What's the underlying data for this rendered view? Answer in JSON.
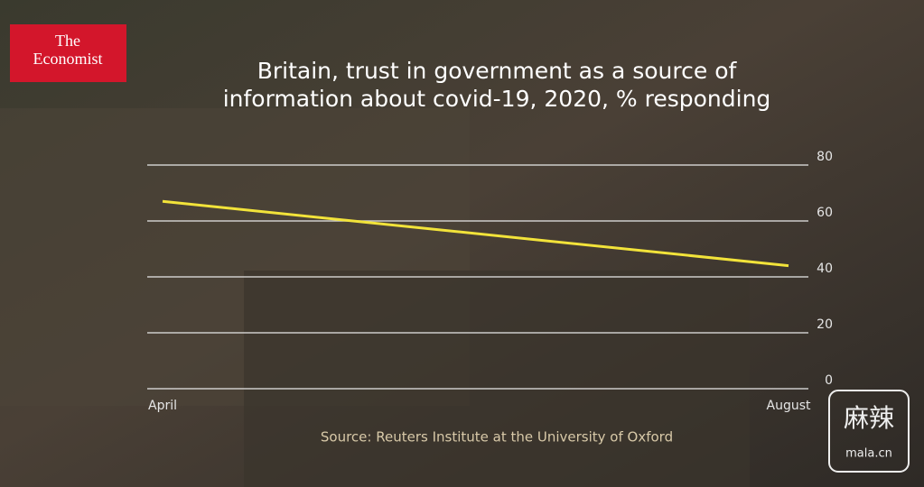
{
  "logo": {
    "lines": [
      "The",
      "Economist"
    ]
  },
  "watermark": {
    "glyph": "麻辣",
    "site": "mala.cn"
  },
  "chart_data": {
    "type": "line",
    "title": [
      "Britain, trust in government as a source of",
      "information about covid-19, 2020, % responding"
    ],
    "categories": [
      "April",
      "August"
    ],
    "values": [
      67,
      44
    ],
    "color": "#f2e33a",
    "ylim": [
      0,
      80
    ],
    "yticks": [
      0,
      20,
      40,
      60,
      80
    ],
    "grid": true,
    "source": "Source: Reuters Institute at the University of Oxford"
  }
}
